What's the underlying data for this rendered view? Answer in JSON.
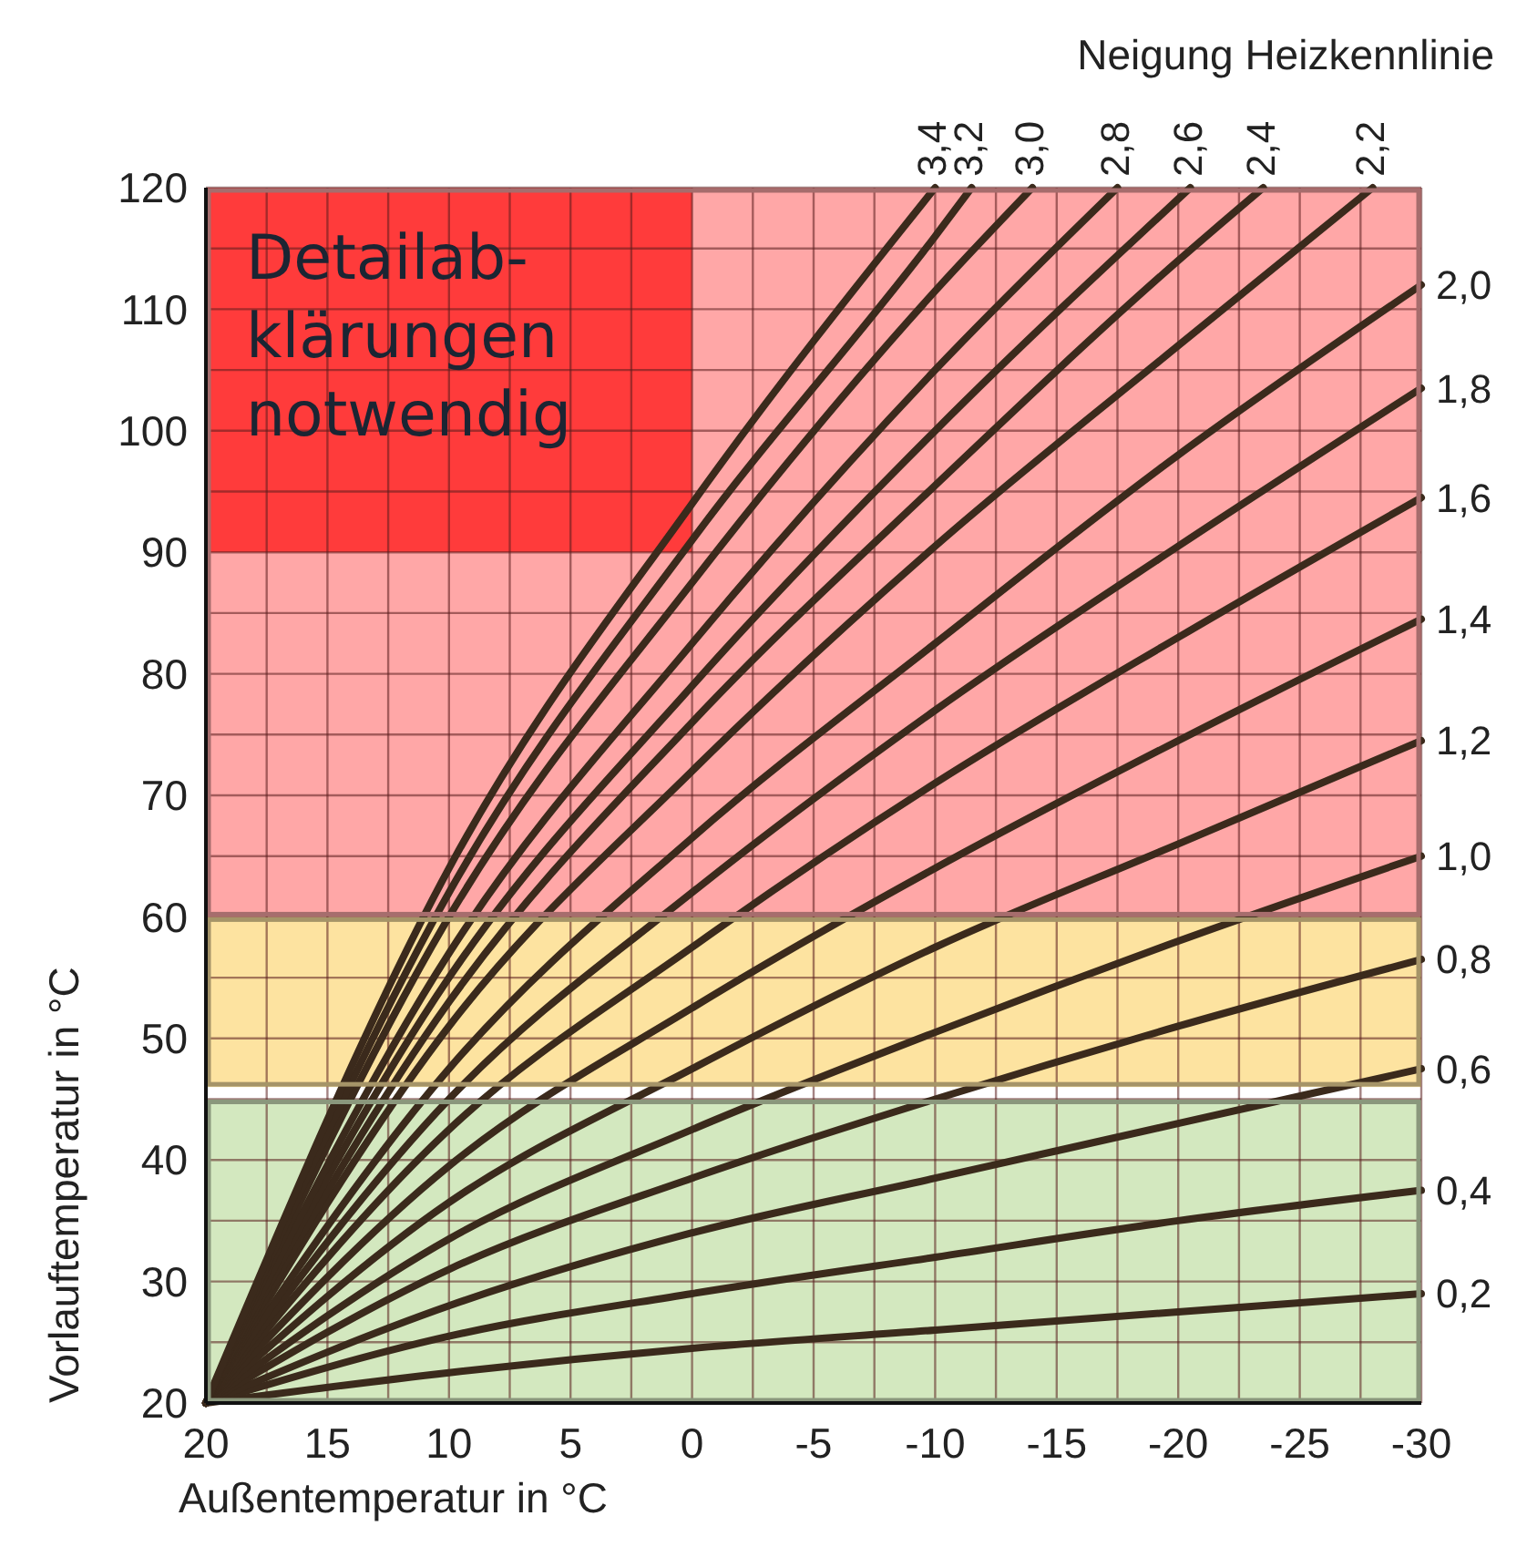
{
  "chart_data": {
    "type": "line",
    "xlabel": "Außentemperatur in °C",
    "ylabel": "Vorlauftemperatur in °C",
    "legend_title": "Neigung Heizkennlinie",
    "xlim": [
      20,
      -30
    ],
    "ylim": [
      20,
      120
    ],
    "xticks": [
      20,
      {
        "value": 17.5,
        "label": null
      },
      15,
      {
        "value": 12.5,
        "label": null
      },
      10,
      {
        "value": 7.5,
        "label": null
      },
      5,
      {
        "value": 2.5,
        "label": null
      },
      0,
      {
        "value": -2.5,
        "label": null
      },
      -5,
      {
        "value": -7.5,
        "label": null
      },
      -10,
      {
        "value": -12.5,
        "label": null
      },
      -15,
      {
        "value": -17.5,
        "label": null
      },
      -20,
      {
        "value": -22.5,
        "label": null
      },
      -25,
      {
        "value": -27.5,
        "label": null
      },
      -30
    ],
    "yticks": [
      20,
      {
        "value": 25,
        "label": null
      },
      30,
      {
        "value": 35,
        "label": null
      },
      40,
      {
        "value": 45,
        "label": null
      },
      50,
      {
        "value": 55,
        "label": null
      },
      60,
      {
        "value": 65,
        "label": null
      },
      70,
      {
        "value": 75,
        "label": null
      },
      80,
      {
        "value": 85,
        "label": null
      },
      90,
      {
        "value": 95,
        "label": null
      },
      100,
      {
        "value": 105,
        "label": null
      },
      110,
      {
        "value": 115,
        "label": null
      },
      120
    ],
    "grid": true,
    "marker": "none",
    "line_style": "solid",
    "bands": [
      {
        "axis": "y",
        "from": 20,
        "to": 45,
        "color": "#d3e8bf",
        "label": null
      },
      {
        "axis": "y",
        "from": 46,
        "to": 60,
        "color": "#fde3a0",
        "label": null
      },
      {
        "axis": "y",
        "from": 60,
        "to": 120,
        "color": "#ffa7a7",
        "label": null
      }
    ],
    "annotations": [
      "Detailab-\nklärungen\nnotwendig"
    ],
    "series": [
      {
        "name": "0,2",
        "color": "#3b2a1c",
        "x": [
          20,
          10,
          0,
          -10,
          -20,
          -30
        ],
        "values": [
          20,
          22.5,
          24.5,
          26,
          27.5,
          29
        ]
      },
      {
        "name": "0,4",
        "color": "#3b2a1c",
        "x": [
          20,
          10,
          0,
          -10,
          -20,
          -30
        ],
        "values": [
          20,
          25.5,
          29,
          32,
          35,
          37.5
        ]
      },
      {
        "name": "0,6",
        "color": "#3b2a1c",
        "x": [
          20,
          10,
          0,
          -10,
          -20,
          -30
        ],
        "values": [
          20,
          28,
          34,
          38.5,
          43,
          47.5
        ]
      },
      {
        "name": "0,8",
        "color": "#3b2a1c",
        "x": [
          20,
          10,
          0,
          -10,
          -20,
          -30
        ],
        "values": [
          20,
          31,
          38.5,
          45,
          51,
          56.5
        ]
      },
      {
        "name": "1,0",
        "color": "#3b2a1c",
        "x": [
          20,
          10,
          0,
          -10,
          -20,
          -30
        ],
        "values": [
          20,
          33.5,
          42.5,
          50.5,
          58,
          65
        ]
      },
      {
        "name": "1,2",
        "color": "#3b2a1c",
        "x": [
          20,
          10,
          0,
          -10,
          -20,
          -30
        ],
        "values": [
          20,
          36.5,
          47.5,
          57.5,
          66,
          74.5
        ]
      },
      {
        "name": "1,4",
        "color": "#3b2a1c",
        "x": [
          20,
          10,
          0,
          -10,
          -20,
          -30
        ],
        "values": [
          20,
          39.5,
          52.5,
          64,
          74.5,
          84.5
        ]
      },
      {
        "name": "1,6",
        "color": "#3b2a1c",
        "x": [
          20,
          10,
          0,
          -10,
          -20,
          -30
        ],
        "values": [
          20,
          42.5,
          57.5,
          71,
          83,
          94.5
        ]
      },
      {
        "name": "1,8",
        "color": "#3b2a1c",
        "x": [
          20,
          10,
          0,
          -10,
          -20,
          -30
        ],
        "values": [
          20,
          45,
          62,
          77,
          90.5,
          103.5
        ]
      },
      {
        "name": "2,0",
        "color": "#3b2a1c",
        "x": [
          20,
          10,
          0,
          -10,
          -20,
          -30
        ],
        "values": [
          20,
          47.5,
          66.5,
          82.5,
          98,
          112
        ]
      },
      {
        "name": "2,2",
        "color": "#3b2a1c",
        "x": [
          20,
          10,
          0,
          -10,
          -20,
          -28
        ],
        "values": [
          20,
          51,
          72,
          90.5,
          107,
          120
        ]
      },
      {
        "name": "2,4",
        "color": "#3b2a1c",
        "x": [
          20,
          10,
          0,
          -10,
          -20,
          -23.5
        ],
        "values": [
          20,
          53,
          76,
          95.5,
          114,
          120
        ]
      },
      {
        "name": "2,6",
        "color": "#3b2a1c",
        "x": [
          20,
          10,
          0,
          -10,
          -20.5
        ],
        "values": [
          20,
          55,
          79,
          100,
          120
        ]
      },
      {
        "name": "2,8",
        "color": "#3b2a1c",
        "x": [
          20,
          10,
          0,
          -10,
          -17.5
        ],
        "values": [
          20,
          57,
          82.5,
          105,
          120
        ]
      },
      {
        "name": "3,0",
        "color": "#3b2a1c",
        "x": [
          20,
          10,
          0,
          -10,
          -14
        ],
        "values": [
          20,
          60,
          87.5,
          111.5,
          120
        ]
      },
      {
        "name": "3,2",
        "color": "#3b2a1c",
        "x": [
          20,
          10,
          0,
          -10,
          -11.5
        ],
        "values": [
          20,
          62,
          91,
          116,
          120
        ]
      },
      {
        "name": "3,4",
        "color": "#3b2a1c",
        "x": [
          20,
          10,
          0,
          -10
        ],
        "values": [
          20,
          64,
          94,
          120
        ]
      }
    ]
  }
}
